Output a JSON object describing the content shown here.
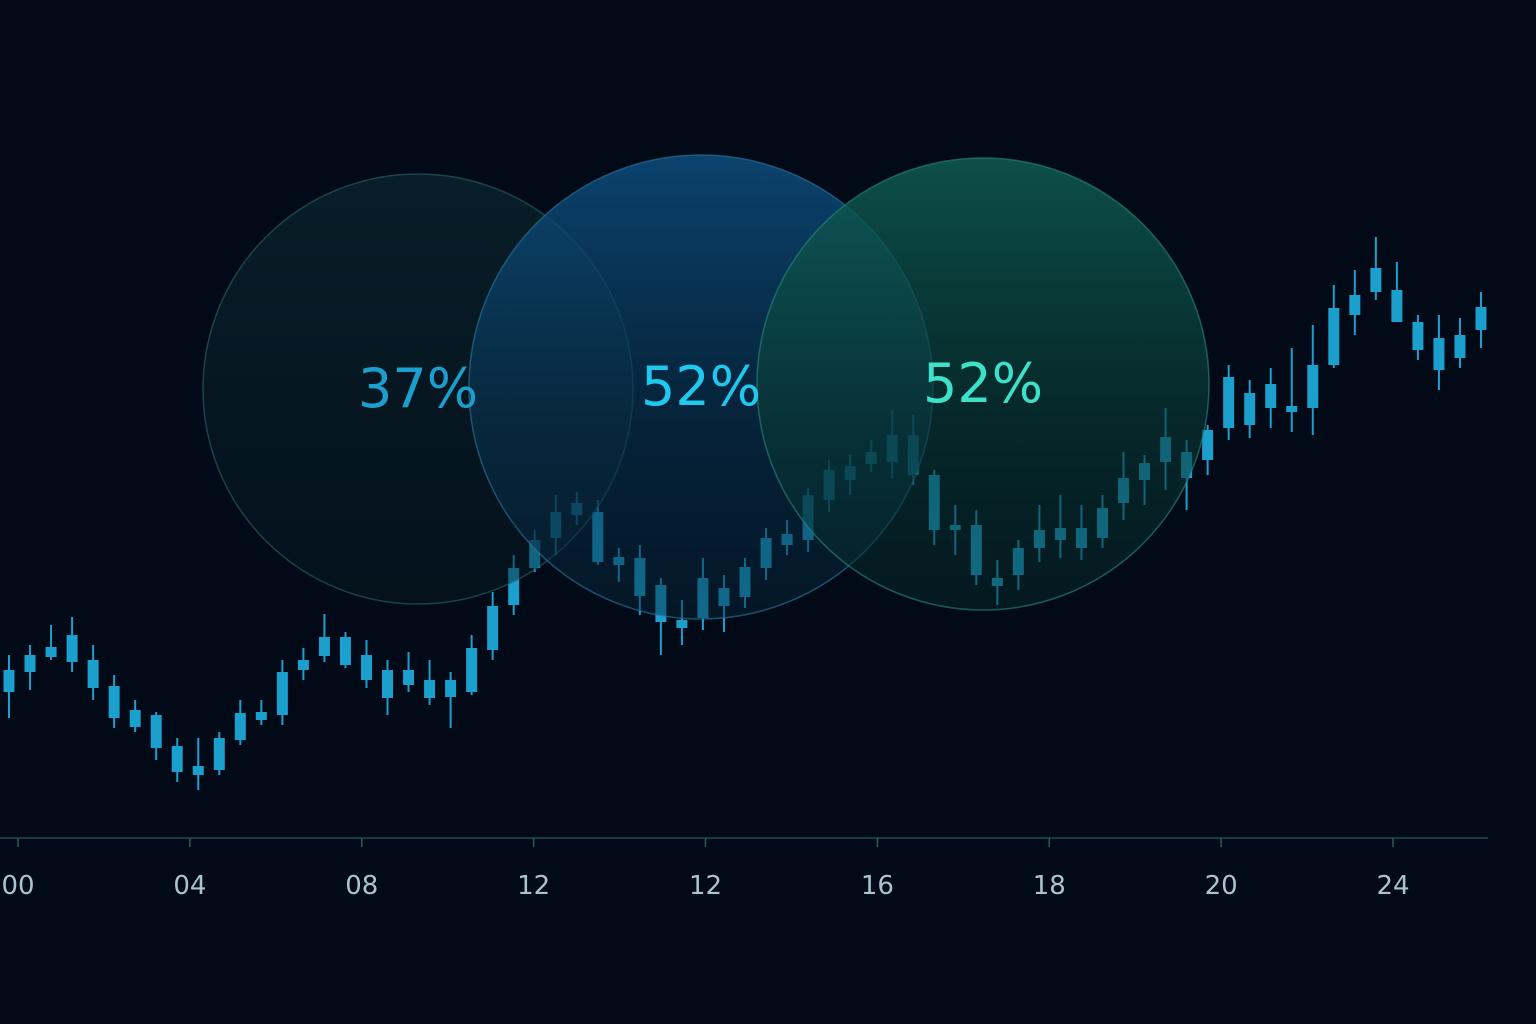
{
  "chart_data": {
    "type": "candlestick",
    "color": "#1b9fcc",
    "ylim": [
      0,
      640
    ],
    "xticks": [
      "00",
      "04",
      "08",
      "12",
      "12",
      "16",
      "18",
      "20",
      "24"
    ],
    "open": [
      148,
      168,
      183,
      178,
      180,
      154,
      130,
      125,
      94,
      65,
      70,
      100,
      120,
      125,
      170,
      184,
      203,
      185,
      170,
      155,
      160,
      143,
      148,
      190,
      235,
      272,
      302,
      325,
      328,
      275,
      282,
      255,
      212,
      222,
      234,
      243,
      272,
      295,
      300,
      340,
      360,
      376,
      378,
      365,
      365,
      310,
      315,
      262,
      265,
      292,
      300,
      292,
      302,
      337,
      360,
      378,
      388,
      380,
      412,
      415,
      432,
      428,
      432,
      475,
      525,
      548,
      550,
      518,
      502,
      482,
      510
    ],
    "high": [
      185,
      195,
      215,
      223,
      195,
      165,
      140,
      128,
      102,
      102,
      108,
      140,
      140,
      180,
      192,
      226,
      208,
      200,
      180,
      188,
      180,
      168,
      205,
      248,
      285,
      310,
      345,
      348,
      340,
      292,
      295,
      262,
      240,
      282,
      265,
      282,
      312,
      320,
      352,
      380,
      385,
      400,
      430,
      425,
      370,
      335,
      330,
      280,
      300,
      335,
      345,
      335,
      345,
      388,
      385,
      432,
      400,
      415,
      475,
      460,
      472,
      492,
      515,
      555,
      570,
      603,
      578,
      525,
      525,
      522,
      548
    ],
    "low": [
      122,
      150,
      180,
      168,
      140,
      112,
      108,
      80,
      58,
      50,
      65,
      95,
      115,
      115,
      160,
      178,
      172,
      152,
      125,
      148,
      135,
      112,
      145,
      180,
      225,
      268,
      285,
      315,
      275,
      258,
      225,
      185,
      195,
      210,
      208,
      232,
      260,
      285,
      288,
      328,
      345,
      368,
      362,
      355,
      295,
      285,
      255,
      235,
      250,
      278,
      282,
      280,
      292,
      320,
      335,
      350,
      330,
      365,
      400,
      402,
      412,
      408,
      405,
      472,
      505,
      540,
      518,
      480,
      450,
      472,
      492
    ],
    "close": [
      170,
      185,
      193,
      205,
      152,
      122,
      113,
      92,
      68,
      74,
      102,
      127,
      128,
      168,
      180,
      203,
      175,
      160,
      142,
      170,
      142,
      160,
      192,
      234,
      272,
      300,
      328,
      337,
      278,
      283,
      244,
      218,
      220,
      262,
      252,
      273,
      302,
      306,
      345,
      370,
      374,
      388,
      405,
      405,
      310,
      315,
      265,
      254,
      292,
      310,
      312,
      312,
      332,
      362,
      377,
      403,
      362,
      410,
      463,
      447,
      456,
      434,
      475,
      532,
      545,
      572,
      518,
      490,
      470,
      505,
      533
    ],
    "bubbles": {
      "values": [
        37,
        52,
        52
      ],
      "value_labels": [
        "37%",
        "52%",
        "52%"
      ],
      "colors": [
        "#1a9fcf",
        "#1fc8ee",
        "#3de0c8"
      ]
    }
  }
}
